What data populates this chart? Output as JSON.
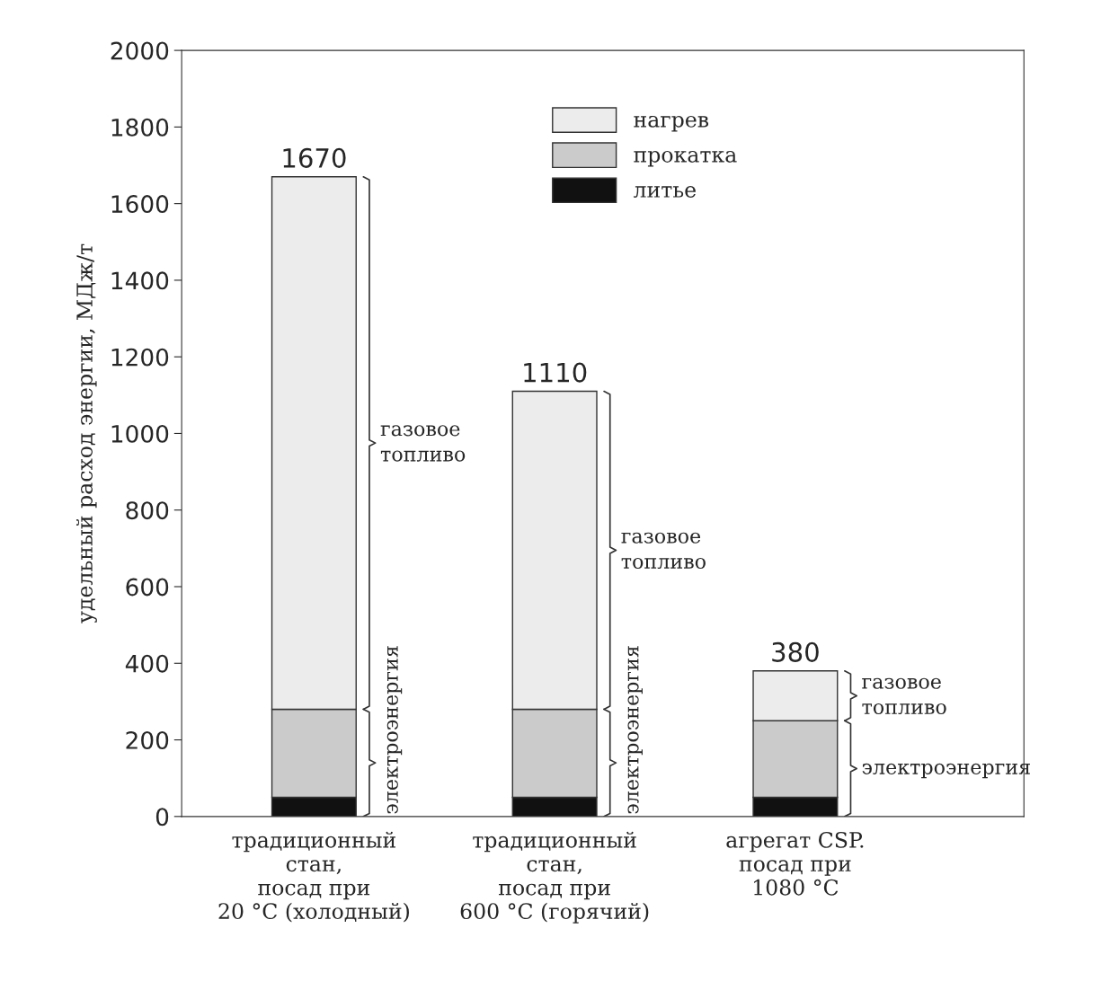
{
  "chart_data": {
    "type": "bar",
    "stacked": true,
    "ylabel": "удельный расход энергии, МДж/т",
    "categories": [
      "традиционный\nстан,\nпосад при\n20 °C (холодный)",
      "традиционный\nстан,\nпосад при\n600 °C (горячий)",
      "агрегат CSP.\nпосад при\n1080 °C"
    ],
    "series": [
      {
        "name": "литье",
        "color": "#111111",
        "values": [
          50,
          50,
          50
        ]
      },
      {
        "name": "прокатка",
        "color": "#cbcbcb",
        "values": [
          230,
          230,
          200
        ]
      },
      {
        "name": "нагрев",
        "color": "#ececec",
        "values": [
          1390,
          830,
          130
        ]
      }
    ],
    "totals": [
      "1670",
      "1110",
      "380"
    ],
    "ylim": [
      0,
      2000
    ],
    "yticks": [
      0,
      200,
      400,
      600,
      800,
      1000,
      1200,
      1400,
      1600,
      1800,
      2000
    ],
    "grid": false,
    "legend": "top",
    "annotations": [
      "газовое\nтопливо",
      "электроэнергия",
      "газовое\nтопливо",
      "электроэнергия",
      "газовое\nтопливо",
      "электроэнергия"
    ]
  }
}
